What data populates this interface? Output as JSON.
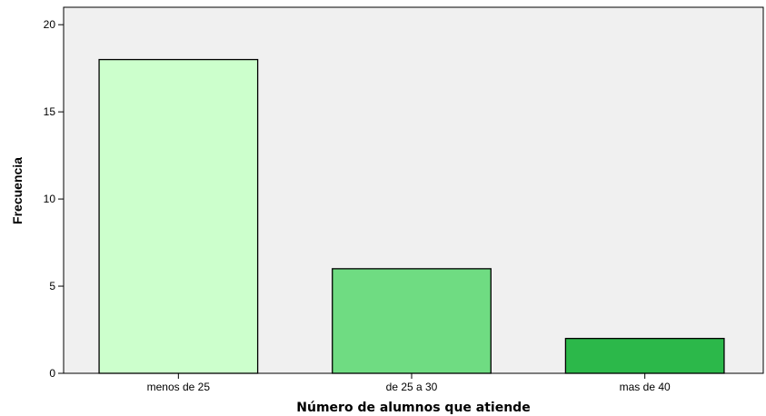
{
  "chart_data": {
    "type": "bar",
    "title": "",
    "xlabel": "Número de alumnos que atiende",
    "ylabel": "Frecuencia",
    "categories": [
      "menos de 25",
      "de 25 a 30",
      "mas de 40"
    ],
    "values": [
      18,
      6,
      2
    ],
    "ylim": [
      0,
      21
    ],
    "yticks": [
      "0",
      "5",
      "10",
      "15",
      "20"
    ],
    "grid": false,
    "legend": "none",
    "bar_colors": [
      "#ccffcc",
      "#6fdc82",
      "#2cb84a"
    ],
    "plot_background": "#f0f0f0"
  }
}
